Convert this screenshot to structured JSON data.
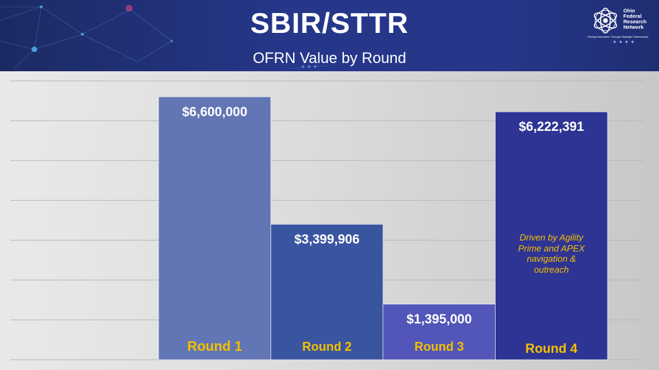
{
  "header": {
    "title": "SBIR/STTR",
    "subtitle": "OFRN Value by Round",
    "logo_text": [
      "Ohio",
      "Federal",
      "Research",
      "Network"
    ],
    "logo_tagline": "Driving Innovation Through Strategic Partnerships",
    "logo_icon": "atom-icon"
  },
  "colors": {
    "banner": "#26378a",
    "label_gold": "#f2c000",
    "bar_colors": [
      "#6275b4",
      "#3a55a0",
      "#5256b8",
      "#2e3494"
    ]
  },
  "chart_data": {
    "type": "bar",
    "title": "OFRN Value by Round",
    "categories": [
      "Round 1",
      "Round 2",
      "Round 3",
      "Round 4"
    ],
    "values": [
      6600000,
      3399906,
      1395000,
      6222391
    ],
    "value_labels": [
      "$6,600,000",
      "$3,399,906",
      "$1,395,000",
      "$6,222,391"
    ],
    "annotation": {
      "category": "Round 4",
      "text": "Driven by Agility Prime and APEX navigation & outreach"
    },
    "ylim": [
      0,
      7000000
    ],
    "grid": true,
    "legend": "none"
  }
}
